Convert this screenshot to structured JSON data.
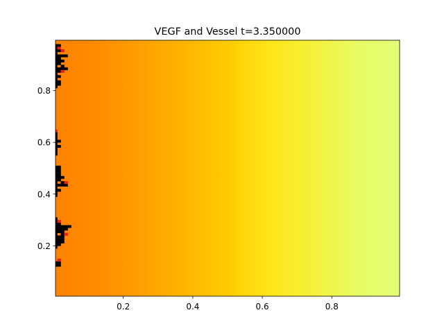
{
  "chart_data": {
    "type": "heatmap",
    "title": "VEGF and Vessel t=3.350000",
    "xlabel": "",
    "ylabel": "",
    "xlim": [
      0.005,
      0.995
    ],
    "ylim": [
      0.005,
      0.995
    ],
    "xticks": [
      0.2,
      0.4,
      0.6,
      0.8
    ],
    "yticks": [
      0.2,
      0.4,
      0.6,
      0.8
    ],
    "xtick_labels": [
      "0.2",
      "0.4",
      "0.6",
      "0.8"
    ],
    "ytick_labels": [
      "0.2",
      "0.4",
      "0.6",
      "0.8"
    ],
    "field": {
      "name": "VEGF",
      "varies_along": "x",
      "gradient_stops": [
        {
          "x": 0.0,
          "color": "#ff8200"
        },
        {
          "x": 0.12,
          "color": "#ff8c00"
        },
        {
          "x": 0.3,
          "color": "#ffa800"
        },
        {
          "x": 0.5,
          "color": "#ffcb00"
        },
        {
          "x": 0.62,
          "color": "#ffe519"
        },
        {
          "x": 0.75,
          "color": "#f4f23a"
        },
        {
          "x": 0.88,
          "color": "#e8fb63"
        },
        {
          "x": 1.0,
          "color": "#e2ff78"
        }
      ]
    },
    "vessel_color": "#000000",
    "tip_color": "#e8201a",
    "vessel_cells": [
      [
        0.005,
        0.975
      ],
      [
        0.015,
        0.975
      ],
      [
        0.005,
        0.965
      ],
      [
        0.005,
        0.955
      ],
      [
        0.015,
        0.955
      ],
      [
        0.005,
        0.945
      ],
      [
        0.005,
        0.935
      ],
      [
        0.015,
        0.935
      ],
      [
        0.025,
        0.935
      ],
      [
        0.035,
        0.935
      ],
      [
        0.005,
        0.925
      ],
      [
        0.015,
        0.925
      ],
      [
        0.005,
        0.915
      ],
      [
        0.015,
        0.915
      ],
      [
        0.025,
        0.915
      ],
      [
        0.005,
        0.905
      ],
      [
        0.015,
        0.905
      ],
      [
        0.005,
        0.895
      ],
      [
        0.025,
        0.895
      ],
      [
        0.005,
        0.885
      ],
      [
        0.015,
        0.885
      ],
      [
        0.025,
        0.885
      ],
      [
        0.035,
        0.885
      ],
      [
        0.005,
        0.875
      ],
      [
        0.015,
        0.875
      ],
      [
        0.005,
        0.865
      ],
      [
        0.005,
        0.855
      ],
      [
        0.015,
        0.855
      ],
      [
        0.005,
        0.845
      ],
      [
        0.005,
        0.835
      ],
      [
        0.015,
        0.835
      ],
      [
        0.005,
        0.825
      ],
      [
        0.015,
        0.825
      ],
      [
        0.005,
        0.815
      ],
      [
        0.005,
        0.635
      ],
      [
        0.005,
        0.625
      ],
      [
        0.005,
        0.615
      ],
      [
        0.005,
        0.605
      ],
      [
        0.015,
        0.605
      ],
      [
        0.005,
        0.595
      ],
      [
        0.005,
        0.585
      ],
      [
        0.015,
        0.585
      ],
      [
        0.005,
        0.575
      ],
      [
        0.005,
        0.565
      ],
      [
        0.005,
        0.555
      ],
      [
        0.005,
        0.505
      ],
      [
        0.015,
        0.505
      ],
      [
        0.005,
        0.495
      ],
      [
        0.015,
        0.495
      ],
      [
        0.005,
        0.485
      ],
      [
        0.015,
        0.485
      ],
      [
        0.005,
        0.475
      ],
      [
        0.015,
        0.475
      ],
      [
        0.005,
        0.465
      ],
      [
        0.015,
        0.465
      ],
      [
        0.025,
        0.465
      ],
      [
        0.005,
        0.455
      ],
      [
        0.015,
        0.455
      ],
      [
        0.005,
        0.445
      ],
      [
        0.025,
        0.445
      ],
      [
        0.005,
        0.435
      ],
      [
        0.015,
        0.435
      ],
      [
        0.025,
        0.435
      ],
      [
        0.035,
        0.435
      ],
      [
        0.005,
        0.425
      ],
      [
        0.005,
        0.415
      ],
      [
        0.015,
        0.415
      ],
      [
        0.005,
        0.405
      ],
      [
        0.005,
        0.395
      ],
      [
        0.005,
        0.305
      ],
      [
        0.005,
        0.295
      ],
      [
        0.005,
        0.285
      ],
      [
        0.015,
        0.285
      ],
      [
        0.005,
        0.275
      ],
      [
        0.015,
        0.275
      ],
      [
        0.025,
        0.275
      ],
      [
        0.035,
        0.275
      ],
      [
        0.045,
        0.275
      ],
      [
        0.005,
        0.265
      ],
      [
        0.015,
        0.265
      ],
      [
        0.025,
        0.265
      ],
      [
        0.035,
        0.265
      ],
      [
        0.005,
        0.255
      ],
      [
        0.015,
        0.255
      ],
      [
        0.025,
        0.255
      ],
      [
        0.005,
        0.245
      ],
      [
        0.025,
        0.245
      ],
      [
        0.005,
        0.235
      ],
      [
        0.015,
        0.235
      ],
      [
        0.025,
        0.235
      ],
      [
        0.005,
        0.225
      ],
      [
        0.015,
        0.225
      ],
      [
        0.025,
        0.225
      ],
      [
        0.005,
        0.215
      ],
      [
        0.015,
        0.215
      ],
      [
        0.025,
        0.215
      ],
      [
        0.005,
        0.205
      ],
      [
        0.015,
        0.205
      ],
      [
        0.005,
        0.195
      ],
      [
        0.005,
        0.135
      ],
      [
        0.015,
        0.135
      ],
      [
        0.005,
        0.125
      ],
      [
        0.015,
        0.125
      ]
    ],
    "tip_cells": [
      [
        0.015,
        0.965
      ],
      [
        0.025,
        0.955
      ],
      [
        0.025,
        0.875
      ],
      [
        0.005,
        0.645
      ],
      [
        0.035,
        0.445
      ],
      [
        0.015,
        0.295
      ],
      [
        0.035,
        0.245
      ],
      [
        0.015,
        0.145
      ]
    ]
  }
}
